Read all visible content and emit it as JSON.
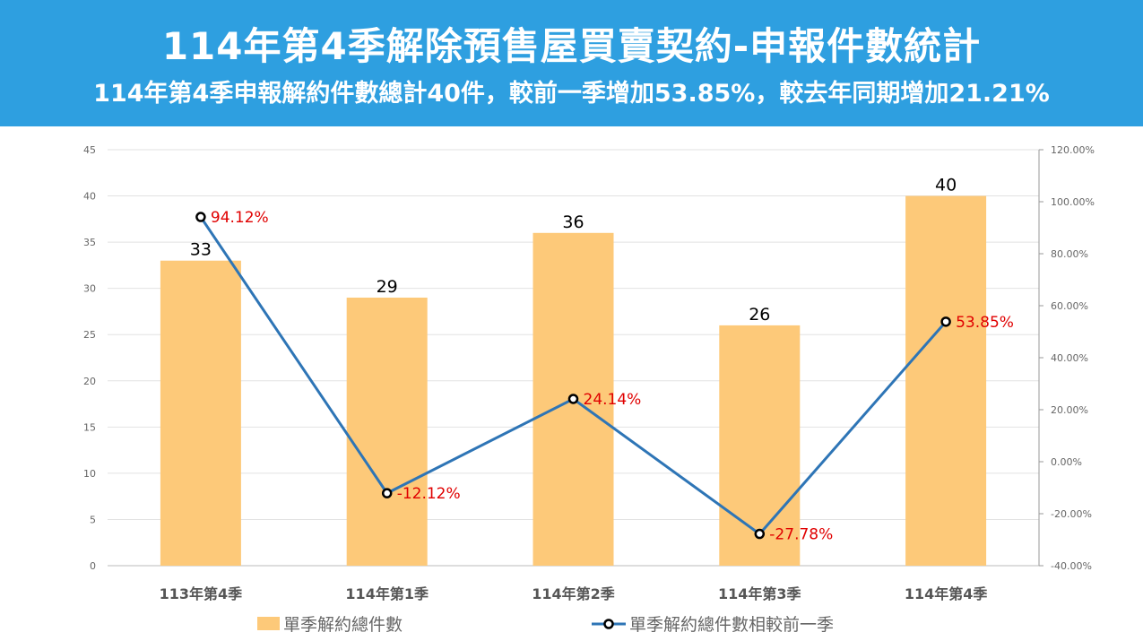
{
  "header": {
    "title": "114年第4季解除預售屋買賣契約-申報件數統計",
    "subtitle": "114年第4季申報解約件數總計40件，較前一季增加53.85%，較去年同期增加21.21%"
  },
  "chart_data": {
    "type": "bar+line",
    "categories": [
      "113年第4季",
      "114年第1季",
      "114年第2季",
      "114年第3季",
      "114年第4季"
    ],
    "series": [
      {
        "name": "單季解約總件數",
        "type": "bar",
        "axis": "left",
        "values": [
          33,
          29,
          36,
          26,
          40
        ],
        "labels": [
          "33",
          "29",
          "36",
          "26",
          "40"
        ],
        "color": "#fdc979"
      },
      {
        "name": "單季解約總件數相較前一季",
        "type": "line",
        "axis": "right",
        "values": [
          94.12,
          -12.12,
          24.14,
          -27.78,
          53.85
        ],
        "labels": [
          "94.12%",
          "-12.12%",
          "24.14%",
          "-27.78%",
          "53.85%"
        ],
        "color": "#2e75b6",
        "label_color": "#e00000"
      }
    ],
    "y_left": {
      "range": [
        0,
        45
      ],
      "ticks": [
        "0",
        "5",
        "10",
        "15",
        "20",
        "25",
        "30",
        "35",
        "40",
        "45"
      ]
    },
    "y_right": {
      "range": [
        -40,
        120
      ],
      "ticks": [
        "-40.00%",
        "-20.00%",
        "0.00%",
        "20.00%",
        "40.00%",
        "60.00%",
        "80.00%",
        "100.00%",
        "120.00%"
      ]
    },
    "grid": true,
    "legend": "bottom"
  }
}
